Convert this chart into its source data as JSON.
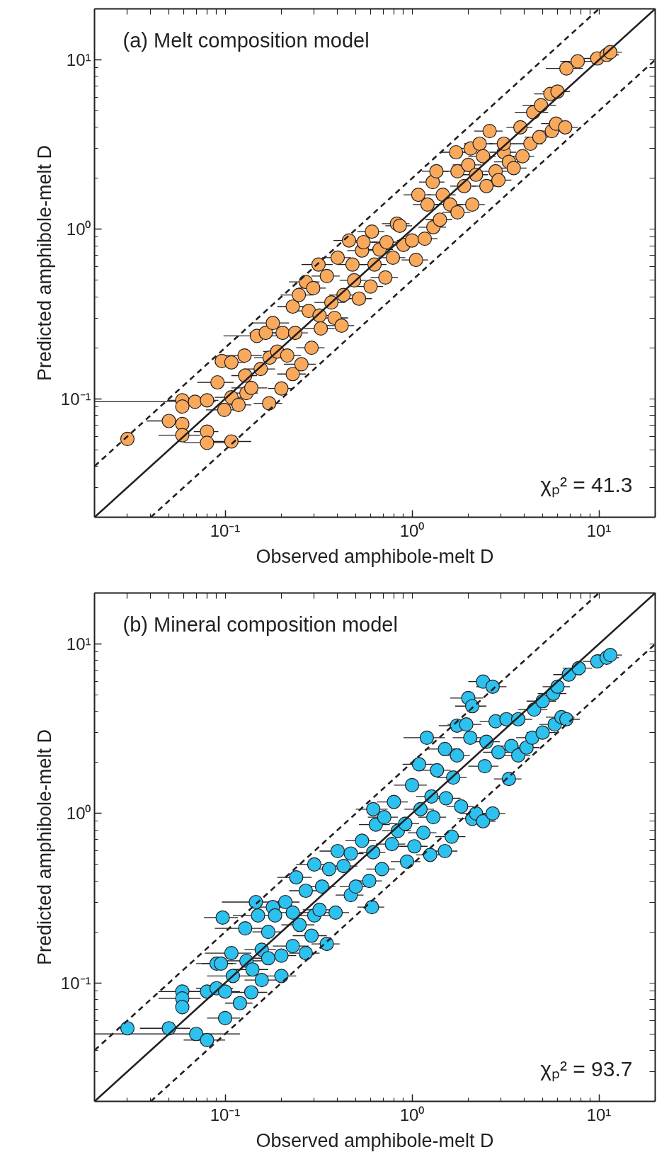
{
  "chart_data": [
    {
      "type": "scatter",
      "title": "(a) Melt composition model",
      "xlabel": "Observed amphibole-melt D",
      "ylabel": "Predicted amphibole-melt D",
      "annotations": [
        "χₚ² = 41.3"
      ],
      "log": "xy",
      "grid": false,
      "xlim": [
        0.02,
        20
      ],
      "ylim": [
        0.02,
        20
      ],
      "xticks": [
        {
          "value": 0.03,
          "label": null
        },
        {
          "value": 0.04,
          "label": null
        },
        {
          "value": 0.05,
          "label": null
        },
        {
          "value": 0.06,
          "label": null
        },
        {
          "value": 0.07,
          "label": null
        },
        {
          "value": 0.08,
          "label": null
        },
        {
          "value": 0.09,
          "label": null
        },
        {
          "value": 0.1,
          "label": "10⁻¹"
        },
        {
          "value": 0.2,
          "label": null
        },
        {
          "value": 0.3,
          "label": null
        },
        {
          "value": 0.4,
          "label": null
        },
        {
          "value": 0.5,
          "label": null
        },
        {
          "value": 0.6,
          "label": null
        },
        {
          "value": 0.7,
          "label": null
        },
        {
          "value": 0.8,
          "label": null
        },
        {
          "value": 0.9,
          "label": null
        },
        {
          "value": 1,
          "label": "10⁰"
        },
        {
          "value": 2,
          "label": null
        },
        {
          "value": 3,
          "label": null
        },
        {
          "value": 4,
          "label": null
        },
        {
          "value": 5,
          "label": null
        },
        {
          "value": 6,
          "label": null
        },
        {
          "value": 7,
          "label": null
        },
        {
          "value": 8,
          "label": null
        },
        {
          "value": 9,
          "label": null
        },
        {
          "value": 10,
          "label": "10¹"
        },
        {
          "value": 20,
          "label": null
        }
      ],
      "yticks": [
        {
          "value": 0.03,
          "label": null
        },
        {
          "value": 0.04,
          "label": null
        },
        {
          "value": 0.05,
          "label": null
        },
        {
          "value": 0.06,
          "label": null
        },
        {
          "value": 0.07,
          "label": null
        },
        {
          "value": 0.08,
          "label": null
        },
        {
          "value": 0.09,
          "label": null
        },
        {
          "value": 0.1,
          "label": "10⁻¹"
        },
        {
          "value": 0.2,
          "label": null
        },
        {
          "value": 0.3,
          "label": null
        },
        {
          "value": 0.4,
          "label": null
        },
        {
          "value": 0.5,
          "label": null
        },
        {
          "value": 0.6,
          "label": null
        },
        {
          "value": 0.7,
          "label": null
        },
        {
          "value": 0.8,
          "label": null
        },
        {
          "value": 0.9,
          "label": null
        },
        {
          "value": 1,
          "label": "10⁰"
        },
        {
          "value": 2,
          "label": null
        },
        {
          "value": 3,
          "label": null
        },
        {
          "value": 4,
          "label": null
        },
        {
          "value": 5,
          "label": null
        },
        {
          "value": 6,
          "label": null
        },
        {
          "value": 7,
          "label": null
        },
        {
          "value": 8,
          "label": null
        },
        {
          "value": 9,
          "label": null
        },
        {
          "value": 10,
          "label": "10¹"
        },
        {
          "value": 20,
          "label": null
        }
      ],
      "series": [
        {
          "marker": "circle",
          "color": "#f9a95c",
          "x": [
            0.03,
            0.05,
            0.059,
            0.059,
            0.059,
            0.059,
            0.069,
            0.08,
            0.08,
            0.08,
            0.091,
            0.096,
            0.099,
            0.108,
            0.108,
            0.108,
            0.118,
            0.127,
            0.128,
            0.13,
            0.138,
            0.148,
            0.155,
            0.165,
            0.172,
            0.173,
            0.18,
            0.19,
            0.2,
            0.203,
            0.215,
            0.23,
            0.23,
            0.237,
            0.248,
            0.256,
            0.27,
            0.28,
            0.29,
            0.296,
            0.316,
            0.32,
            0.325,
            0.35,
            0.37,
            0.385,
            0.4,
            0.42,
            0.43,
            0.46,
            0.48,
            0.49,
            0.52,
            0.54,
            0.55,
            0.6,
            0.61,
            0.63,
            0.67,
            0.72,
            0.73,
            0.79,
            0.83,
            0.86,
            0.9,
            1.0,
            1.05,
            1.08,
            1.17,
            1.21,
            1.29,
            1.3,
            1.35,
            1.41,
            1.46,
            1.6,
            1.72,
            1.75,
            1.75,
            1.9,
            2.0,
            2.06,
            2.1,
            2.2,
            2.3,
            2.4,
            2.5,
            2.6,
            2.8,
            2.9,
            3.1,
            3.1,
            3.3,
            3.5,
            3.8,
            3.9,
            4.3,
            4.45,
            4.8,
            4.9,
            5.6,
            5.5,
            5.9,
            6.0,
            6.6,
            6.7,
            7.7,
            9.8,
            11.0,
            11.5
          ],
          "values": [
            0.058,
            0.074,
            0.098,
            0.09,
            0.071,
            0.061,
            0.096,
            0.098,
            0.064,
            0.055,
            0.125,
            0.167,
            0.086,
            0.164,
            0.102,
            0.056,
            0.092,
            0.18,
            0.137,
            0.108,
            0.116,
            0.235,
            0.15,
            0.245,
            0.094,
            0.175,
            0.28,
            0.19,
            0.115,
            0.245,
            0.18,
            0.35,
            0.14,
            0.245,
            0.41,
            0.16,
            0.49,
            0.33,
            0.2,
            0.45,
            0.62,
            0.31,
            0.26,
            0.53,
            0.37,
            0.3,
            0.68,
            0.27,
            0.41,
            0.86,
            0.62,
            0.5,
            0.39,
            0.75,
            0.84,
            0.46,
            0.97,
            0.62,
            0.76,
            0.52,
            0.84,
            0.68,
            1.08,
            1.05,
            0.81,
            0.86,
            0.66,
            1.6,
            0.88,
            1.4,
            1.9,
            1.03,
            2.2,
            1.14,
            1.6,
            1.4,
            2.85,
            2.2,
            1.26,
            1.8,
            2.4,
            3.0,
            1.4,
            2.1,
            3.2,
            2.7,
            1.8,
            3.8,
            2.2,
            1.95,
            2.85,
            3.2,
            2.5,
            2.3,
            4.0,
            2.7,
            3.2,
            4.9,
            3.5,
            5.4,
            3.8,
            6.3,
            4.2,
            6.5,
            4.0,
            8.9,
            9.8,
            10.2,
            10.7,
            11.1
          ],
          "xerrors": [
            null,
            0.012,
            0.01,
            null,
            null,
            0.015,
            [
              0.02,
              0.089
            ],
            0.012,
            0.012,
            0.02,
            0.02,
            null,
            0.02,
            0.02,
            0.02,
            0.03,
            0.02,
            0.03,
            0.02,
            0.02,
            0.03,
            0.05,
            0.03,
            0.03,
            0.03,
            0.03,
            0.04,
            0.03,
            0.03,
            0.04,
            0.04,
            0.04,
            0.04,
            0.04,
            0.05,
            0.05,
            0.05,
            0.05,
            0.05,
            0.05,
            0.06,
            0.05,
            0.06,
            0.06,
            0.07,
            0.07,
            0.07,
            0.07,
            0.07,
            0.08,
            0.08,
            0.08,
            0.09,
            0.09,
            0.1,
            0.1,
            0.1,
            0.1,
            0.12,
            0.12,
            0.12,
            0.13,
            0.14,
            0.14,
            0.15,
            0.17,
            0.17,
            0.18,
            0.2,
            0.2,
            0.2,
            0.22,
            0.22,
            0.23,
            0.25,
            0.27,
            0.3,
            0.3,
            0.3,
            0.3,
            0.35,
            0.35,
            0.35,
            0.35,
            0.4,
            0.4,
            0.4,
            0.45,
            0.45,
            0.5,
            0.5,
            0.5,
            0.55,
            0.6,
            0.6,
            0.6,
            0.7,
            0.9,
            0.8,
            1.0,
            0.9,
            1.0,
            1.0,
            1.0,
            1.1,
            1.5,
            1.5,
            1.5,
            1.8,
            1.8
          ]
        },
        {
          "type": "line",
          "color": "#231f20",
          "line_style": "solid",
          "x": [
            0.02,
            20
          ],
          "values": [
            0.02,
            20
          ]
        },
        {
          "type": "line",
          "color": "#231f20",
          "line_style": "dashed",
          "x": [
            0.02,
            10
          ],
          "values": [
            0.04,
            20
          ]
        },
        {
          "type": "line",
          "color": "#231f20",
          "line_style": "dashed",
          "x": [
            0.04,
            20
          ],
          "values": [
            0.02,
            10
          ]
        }
      ]
    },
    {
      "type": "scatter",
      "title": "(b) Mineral composition model",
      "xlabel": "Observed amphibole-melt D",
      "ylabel": "Predicted amphibole-melt D",
      "annotations": [
        "χₚ² = 93.7"
      ],
      "log": "xy",
      "grid": false,
      "xlim": [
        0.02,
        20
      ],
      "ylim": [
        0.02,
        20
      ],
      "xticks": [
        {
          "value": 0.03,
          "label": null
        },
        {
          "value": 0.04,
          "label": null
        },
        {
          "value": 0.05,
          "label": null
        },
        {
          "value": 0.06,
          "label": null
        },
        {
          "value": 0.07,
          "label": null
        },
        {
          "value": 0.08,
          "label": null
        },
        {
          "value": 0.09,
          "label": null
        },
        {
          "value": 0.1,
          "label": "10⁻¹"
        },
        {
          "value": 0.2,
          "label": null
        },
        {
          "value": 0.3,
          "label": null
        },
        {
          "value": 0.4,
          "label": null
        },
        {
          "value": 0.5,
          "label": null
        },
        {
          "value": 0.6,
          "label": null
        },
        {
          "value": 0.7,
          "label": null
        },
        {
          "value": 0.8,
          "label": null
        },
        {
          "value": 0.9,
          "label": null
        },
        {
          "value": 1,
          "label": "10⁰"
        },
        {
          "value": 2,
          "label": null
        },
        {
          "value": 3,
          "label": null
        },
        {
          "value": 4,
          "label": null
        },
        {
          "value": 5,
          "label": null
        },
        {
          "value": 6,
          "label": null
        },
        {
          "value": 7,
          "label": null
        },
        {
          "value": 8,
          "label": null
        },
        {
          "value": 9,
          "label": null
        },
        {
          "value": 10,
          "label": "10¹"
        },
        {
          "value": 20,
          "label": null
        }
      ],
      "yticks": [
        {
          "value": 0.03,
          "label": null
        },
        {
          "value": 0.04,
          "label": null
        },
        {
          "value": 0.05,
          "label": null
        },
        {
          "value": 0.06,
          "label": null
        },
        {
          "value": 0.07,
          "label": null
        },
        {
          "value": 0.08,
          "label": null
        },
        {
          "value": 0.09,
          "label": null
        },
        {
          "value": 0.1,
          "label": "10⁻¹"
        },
        {
          "value": 0.2,
          "label": null
        },
        {
          "value": 0.3,
          "label": null
        },
        {
          "value": 0.4,
          "label": null
        },
        {
          "value": 0.5,
          "label": null
        },
        {
          "value": 0.6,
          "label": null
        },
        {
          "value": 0.7,
          "label": null
        },
        {
          "value": 0.8,
          "label": null
        },
        {
          "value": 0.9,
          "label": null
        },
        {
          "value": 1,
          "label": "10⁰"
        },
        {
          "value": 2,
          "label": null
        },
        {
          "value": 3,
          "label": null
        },
        {
          "value": 4,
          "label": null
        },
        {
          "value": 5,
          "label": null
        },
        {
          "value": 6,
          "label": null
        },
        {
          "value": 7,
          "label": null
        },
        {
          "value": 8,
          "label": null
        },
        {
          "value": 9,
          "label": null
        },
        {
          "value": 10,
          "label": "10¹"
        },
        {
          "value": 20,
          "label": null
        }
      ],
      "series": [
        {
          "marker": "circle",
          "color": "#2cc1ef",
          "x": [
            0.03,
            0.05,
            0.059,
            0.059,
            0.059,
            0.07,
            0.08,
            0.08,
            0.09,
            0.09,
            0.097,
            0.095,
            0.1,
            0.1,
            0.108,
            0.11,
            0.12,
            0.128,
            0.13,
            0.138,
            0.14,
            0.146,
            0.15,
            0.157,
            0.157,
            0.17,
            0.17,
            0.18,
            0.185,
            0.2,
            0.2,
            0.21,
            0.23,
            0.23,
            0.24,
            0.25,
            0.27,
            0.27,
            0.29,
            0.3,
            0.3,
            0.32,
            0.33,
            0.35,
            0.36,
            0.39,
            0.4,
            0.43,
            0.47,
            0.47,
            0.5,
            0.54,
            0.59,
            0.61,
            0.62,
            0.62,
            0.64,
            0.69,
            0.71,
            0.78,
            0.8,
            0.84,
            0.92,
            0.94,
            1.0,
            1.03,
            1.09,
            1.11,
            1.15,
            1.2,
            1.25,
            1.27,
            1.3,
            1.36,
            1.5,
            1.5,
            1.52,
            1.63,
            1.66,
            1.74,
            1.74,
            1.83,
            1.95,
            2.0,
            2.05,
            2.1,
            2.1,
            2.2,
            2.4,
            2.4,
            2.45,
            2.5,
            2.7,
            2.7,
            2.8,
            2.9,
            3.2,
            3.3,
            3.4,
            3.7,
            3.7,
            4.1,
            4.4,
            4.5,
            5.0,
            5.0,
            5.7,
            5.8,
            6.0,
            6.3,
            6.7,
            6.9,
            7.8,
            9.8,
            11.0,
            11.5
          ],
          "values": [
            0.054,
            0.054,
            0.089,
            0.081,
            0.072,
            0.05,
            0.046,
            0.089,
            0.093,
            0.13,
            0.243,
            0.13,
            0.062,
            0.089,
            0.15,
            0.11,
            0.076,
            0.21,
            0.135,
            0.088,
            0.12,
            0.3,
            0.25,
            0.157,
            0.104,
            0.2,
            0.14,
            0.28,
            0.25,
            0.11,
            0.145,
            0.3,
            0.165,
            0.26,
            0.42,
            0.22,
            0.15,
            0.35,
            0.19,
            0.25,
            0.5,
            0.27,
            0.37,
            0.17,
            0.47,
            0.26,
            0.6,
            0.49,
            0.58,
            0.33,
            0.37,
            0.69,
            0.4,
            0.28,
            1.06,
            0.59,
            0.86,
            0.47,
            0.95,
            0.66,
            1.17,
            0.79,
            0.87,
            0.52,
            1.47,
            0.64,
            1.95,
            1.06,
            0.77,
            2.8,
            0.57,
            1.26,
            0.95,
            1.8,
            0.6,
            2.4,
            1.23,
            0.73,
            1.63,
            2.2,
            3.3,
            1.1,
            3.35,
            4.8,
            2.8,
            4.3,
            0.93,
            1.0,
            6.0,
            0.9,
            1.9,
            2.65,
            5.6,
            1.0,
            3.5,
            2.3,
            3.6,
            1.6,
            2.5,
            2.2,
            3.6,
            2.45,
            2.8,
            4.1,
            3.0,
            4.6,
            5.1,
            3.35,
            5.6,
            3.7,
            3.6,
            6.6,
            7.2,
            7.9,
            8.3,
            8.6
          ],
          "xerrors": [
            null,
            0.015,
            0.015,
            0.015,
            null,
            [
              0.02,
              0.12
            ],
            0.02,
            0.02,
            0.02,
            0.02,
            0.02,
            0.02,
            0.02,
            0.02,
            0.03,
            0.03,
            0.02,
            0.04,
            0.03,
            0.03,
            0.03,
            0.05,
            0.04,
            0.03,
            0.03,
            0.03,
            0.03,
            0.04,
            null,
            0.04,
            0.04,
            0.04,
            0.05,
            0.05,
            0.05,
            0.05,
            0.05,
            0.05,
            0.06,
            0.06,
            0.06,
            0.06,
            0.06,
            0.06,
            0.07,
            0.07,
            0.08,
            0.08,
            0.08,
            0.08,
            0.09,
            0.1,
            0.1,
            0.1,
            0.12,
            0.1,
            0.12,
            0.12,
            0.13,
            0.14,
            0.15,
            0.15,
            0.17,
            0.17,
            0.2,
            0.18,
            0.2,
            0.2,
            0.2,
            0.3,
            0.2,
            0.22,
            0.22,
            0.25,
            0.25,
            0.3,
            0.3,
            0.3,
            0.3,
            0.3,
            0.35,
            0.3,
            0.4,
            0.4,
            0.4,
            0.4,
            0.35,
            0.4,
            0.4,
            0.4,
            0.45,
            0.45,
            0.5,
            0.45,
            0.5,
            0.5,
            0.6,
            0.55,
            0.6,
            0.6,
            0.7,
            0.7,
            0.8,
            0.8,
            0.9,
            0.9,
            1.0,
            1.0,
            1.0,
            1.1,
            1.2,
            1.2,
            1.4,
            1.6,
            1.8,
            1.8
          ]
        },
        {
          "type": "line",
          "color": "#231f20",
          "line_style": "solid",
          "x": [
            0.02,
            20
          ],
          "values": [
            0.02,
            20
          ]
        },
        {
          "type": "line",
          "color": "#231f20",
          "line_style": "dashed",
          "x": [
            0.02,
            10
          ],
          "values": [
            0.04,
            20
          ]
        },
        {
          "type": "line",
          "color": "#231f20",
          "line_style": "dashed",
          "x": [
            0.04,
            20
          ],
          "values": [
            0.02,
            10
          ]
        }
      ]
    }
  ]
}
